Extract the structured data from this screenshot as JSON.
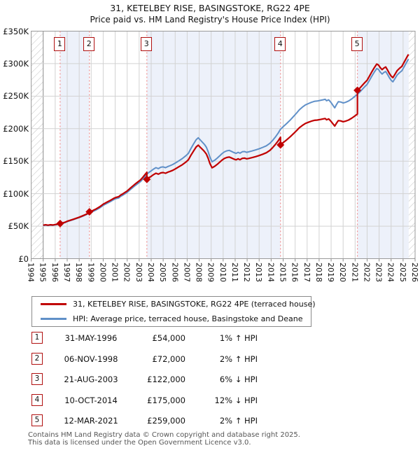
{
  "title": "31, KETELBEY RISE, BASINGSTOKE, RG22 4PE",
  "subtitle": "Price paid vs. HM Land Registry's House Price Index (HPI)",
  "legend": {
    "items": [
      {
        "label": "31, KETELBEY RISE, BASINGSTOKE, RG22 4PE (terraced house)",
        "color": "#c00000"
      },
      {
        "label": "HPI: Average price, terraced house, Basingstoke and Deane",
        "color": "#6090c8"
      }
    ]
  },
  "table": {
    "rows": [
      {
        "num": "1",
        "date": "31-MAY-1996",
        "price": "£54,000",
        "hpi_delta": "1% ↑ HPI"
      },
      {
        "num": "2",
        "date": "06-NOV-1998",
        "price": "£72,000",
        "hpi_delta": "2% ↑ HPI"
      },
      {
        "num": "3",
        "date": "21-AUG-2003",
        "price": "£122,000",
        "hpi_delta": "6% ↓ HPI"
      },
      {
        "num": "4",
        "date": "10-OCT-2014",
        "price": "£175,000",
        "hpi_delta": "12% ↓ HPI"
      },
      {
        "num": "5",
        "date": "12-MAR-2021",
        "price": "£259,000",
        "hpi_delta": "2% ↑ HPI"
      }
    ]
  },
  "footer": {
    "line1": "Contains HM Land Registry data © Crown copyright and database right 2025.",
    "line2": "This data is licensed under the Open Government Licence v3.0."
  },
  "chart_data": {
    "type": "line",
    "title": "Price paid vs. HPI",
    "x_axis": {
      "start_year": 1994,
      "end_year": 2026,
      "tick_labels": [
        "1994",
        "1995",
        "1996",
        "1997",
        "1998",
        "1999",
        "2000",
        "2001",
        "2002",
        "2003",
        "2004",
        "2005",
        "2006",
        "2007",
        "2008",
        "2009",
        "2010",
        "2011",
        "2012",
        "2013",
        "2014",
        "2015",
        "2016",
        "2017",
        "2018",
        "2019",
        "2020",
        "2021",
        "2022",
        "2023",
        "2024",
        "2025",
        "2026"
      ]
    },
    "y_axis": {
      "min": 0,
      "max": 350000,
      "tick_values": [
        0,
        50,
        100,
        150,
        200,
        250,
        300,
        350
      ],
      "tick_labels": [
        "£0",
        "£50K",
        "£100K",
        "£150K",
        "£200K",
        "£250K",
        "£300K",
        "£350K"
      ]
    },
    "colors": {
      "price_line": "#c00000",
      "hpi_line": "#6090c8",
      "sale_dash": "#f09090",
      "band": "#edf1fa",
      "grid": "#d2d2d2",
      "grid_dark": "#8a8a8a",
      "frame": "#9a9a9a",
      "hatch": "#c0c0c0"
    },
    "data_start_year": 1995.0,
    "data_end_year": 2025.45,
    "hatch_regions": [
      [
        1994,
        1995
      ],
      [
        2025.47,
        2026
      ]
    ],
    "series": [
      {
        "name": "31, KETELBEY RISE, BASINGSTOKE, RG22 4PE (terraced house)",
        "role": "price_paid_scaled"
      },
      {
        "name": "HPI: Average price, terraced house, Basingstoke and Deane",
        "role": "hpi",
        "points_year_gbpk": [
          [
            1995.0,
            51
          ],
          [
            1995.2,
            51.6
          ],
          [
            1995.4,
            51.0
          ],
          [
            1995.6,
            51.6
          ],
          [
            1995.8,
            51.3
          ],
          [
            1996.0,
            52.0
          ],
          [
            1996.2,
            52.6
          ],
          [
            1996.41,
            53.5
          ],
          [
            1996.6,
            54.3
          ],
          [
            1996.8,
            55.4
          ],
          [
            1997.0,
            57.0
          ],
          [
            1997.25,
            58.5
          ],
          [
            1997.5,
            60.0
          ],
          [
            1997.75,
            61.6
          ],
          [
            1998.0,
            63.2
          ],
          [
            1998.3,
            65.4
          ],
          [
            1998.6,
            67.8
          ],
          [
            1998.85,
            70.5
          ],
          [
            1999.1,
            72.2
          ],
          [
            1999.4,
            74.8
          ],
          [
            1999.7,
            78.0
          ],
          [
            2000.0,
            82.0
          ],
          [
            2000.3,
            85.0
          ],
          [
            2000.6,
            87.8
          ],
          [
            2000.9,
            91.0
          ],
          [
            2001.1,
            92.5
          ],
          [
            2001.3,
            93.4
          ],
          [
            2001.45,
            95.8
          ],
          [
            2001.6,
            97.2
          ],
          [
            2001.8,
            99.6
          ],
          [
            2002.0,
            102.0
          ],
          [
            2002.3,
            106.8
          ],
          [
            2002.6,
            111.5
          ],
          [
            2002.9,
            115.7
          ],
          [
            2003.1,
            118.5
          ],
          [
            2003.3,
            122.5
          ],
          [
            2003.5,
            127.0
          ],
          [
            2003.64,
            130.0
          ],
          [
            2003.8,
            132.5
          ],
          [
            2004.0,
            135.0
          ],
          [
            2004.2,
            137.8
          ],
          [
            2004.4,
            140.0
          ],
          [
            2004.6,
            138.5
          ],
          [
            2004.8,
            140.6
          ],
          [
            2005.0,
            141.2
          ],
          [
            2005.2,
            140.0
          ],
          [
            2005.4,
            141.8
          ],
          [
            2005.6,
            143.2
          ],
          [
            2005.8,
            144.8
          ],
          [
            2006.0,
            147.0
          ],
          [
            2006.3,
            150.5
          ],
          [
            2006.6,
            154.0
          ],
          [
            2006.9,
            158.5
          ],
          [
            2007.1,
            162.0
          ],
          [
            2007.3,
            169.0
          ],
          [
            2007.55,
            177.0
          ],
          [
            2007.75,
            183.0
          ],
          [
            2007.92,
            186.0
          ],
          [
            2008.1,
            182.5
          ],
          [
            2008.3,
            178.5
          ],
          [
            2008.45,
            175.5
          ],
          [
            2008.6,
            171.5
          ],
          [
            2008.75,
            164.5
          ],
          [
            2008.9,
            156.0
          ],
          [
            2009.08,
            149.0
          ],
          [
            2009.3,
            151.5
          ],
          [
            2009.5,
            154.5
          ],
          [
            2009.7,
            158.0
          ],
          [
            2009.9,
            161.5
          ],
          [
            2010.1,
            164.2
          ],
          [
            2010.3,
            165.8
          ],
          [
            2010.5,
            166.6
          ],
          [
            2010.7,
            165.0
          ],
          [
            2010.9,
            163.2
          ],
          [
            2011.08,
            162.0
          ],
          [
            2011.25,
            163.6
          ],
          [
            2011.4,
            162.2
          ],
          [
            2011.6,
            164.4
          ],
          [
            2011.8,
            164.8
          ],
          [
            2011.95,
            163.6
          ],
          [
            2012.1,
            164.2
          ],
          [
            2012.4,
            165.6
          ],
          [
            2012.7,
            167.2
          ],
          [
            2013.0,
            169.0
          ],
          [
            2013.3,
            171.2
          ],
          [
            2013.6,
            173.6
          ],
          [
            2013.9,
            177.5
          ],
          [
            2014.1,
            181.5
          ],
          [
            2014.35,
            187.0
          ],
          [
            2014.6,
            193.5
          ],
          [
            2014.78,
            199.0
          ],
          [
            2015.0,
            203.0
          ],
          [
            2015.3,
            208.0
          ],
          [
            2015.6,
            213.5
          ],
          [
            2015.9,
            219.5
          ],
          [
            2016.1,
            223.5
          ],
          [
            2016.35,
            229.0
          ],
          [
            2016.6,
            233.0
          ],
          [
            2016.85,
            236.5
          ],
          [
            2017.1,
            238.5
          ],
          [
            2017.35,
            240.5
          ],
          [
            2017.6,
            242.0
          ],
          [
            2017.85,
            242.5
          ],
          [
            2018.1,
            243.5
          ],
          [
            2018.35,
            244.5
          ],
          [
            2018.5,
            245.2
          ],
          [
            2018.62,
            243.0
          ],
          [
            2018.8,
            244.4
          ],
          [
            2019.0,
            240.0
          ],
          [
            2019.15,
            236.0
          ],
          [
            2019.3,
            232.0
          ],
          [
            2019.45,
            237.0
          ],
          [
            2019.6,
            241.5
          ],
          [
            2019.8,
            241.0
          ],
          [
            2020.0,
            239.5
          ],
          [
            2020.2,
            240.5
          ],
          [
            2020.45,
            242.5
          ],
          [
            2020.7,
            245.5
          ],
          [
            2020.9,
            248.5
          ],
          [
            2021.19,
            253.0
          ],
          [
            2021.4,
            256.5
          ],
          [
            2021.6,
            260.5
          ],
          [
            2021.8,
            264.5
          ],
          [
            2022.0,
            268.0
          ],
          [
            2022.2,
            274.5
          ],
          [
            2022.4,
            281.0
          ],
          [
            2022.6,
            287.0
          ],
          [
            2022.8,
            292.5
          ],
          [
            2022.95,
            291.0
          ],
          [
            2023.1,
            287.0
          ],
          [
            2023.25,
            284.0
          ],
          [
            2023.4,
            286.5
          ],
          [
            2023.55,
            288.0
          ],
          [
            2023.7,
            283.5
          ],
          [
            2023.85,
            278.5
          ],
          [
            2024.0,
            274.5
          ],
          [
            2024.15,
            272.0
          ],
          [
            2024.3,
            276.5
          ],
          [
            2024.5,
            282.5
          ],
          [
            2024.7,
            286.0
          ],
          [
            2024.9,
            289.0
          ],
          [
            2025.05,
            294.0
          ],
          [
            2025.2,
            299.0
          ],
          [
            2025.35,
            304.0
          ],
          [
            2025.45,
            307.0
          ]
        ]
      }
    ],
    "sales": [
      {
        "n": 1,
        "date": "31-MAY-1996",
        "year": 1996.41,
        "price": 54000,
        "vs_hpi": "1% above"
      },
      {
        "n": 2,
        "date": "06-NOV-1998",
        "year": 1998.85,
        "price": 72000,
        "vs_hpi": "2% above"
      },
      {
        "n": 3,
        "date": "21-AUG-2003",
        "year": 2003.64,
        "price": 122000,
        "vs_hpi": "6% below"
      },
      {
        "n": 4,
        "date": "10-OCT-2014",
        "year": 2014.78,
        "price": 175000,
        "vs_hpi": "12% below"
      },
      {
        "n": 5,
        "date": "12-MAR-2021",
        "year": 2021.19,
        "price": 259000,
        "vs_hpi": "2% above"
      }
    ]
  }
}
